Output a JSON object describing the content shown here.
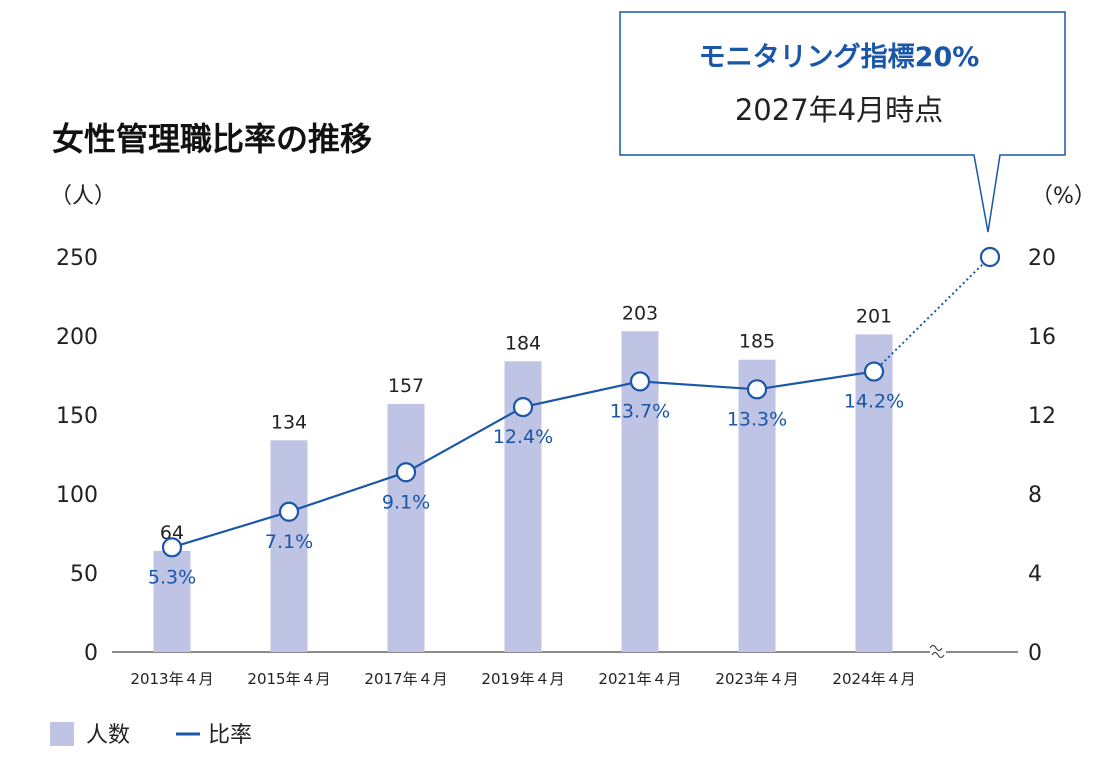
{
  "chart_data": {
    "type": "bar",
    "title": "女性管理職比率の推移",
    "left_axis": {
      "unit": "（人）",
      "ylim": [
        0,
        250
      ],
      "ticks": [
        "0",
        "50",
        "100",
        "150",
        "200",
        "250"
      ]
    },
    "right_axis": {
      "unit": "（%）",
      "ylim": [
        0,
        20
      ],
      "ticks": [
        "0",
        "4",
        "8",
        "12",
        "16",
        "20"
      ]
    },
    "categories": [
      "2013年４月",
      "2015年４月",
      "2017年４月",
      "2019年４月",
      "2021年４月",
      "2023年４月",
      "2024年４月"
    ],
    "series": [
      {
        "name": "人数",
        "type": "bar",
        "axis": "left",
        "values": [
          64,
          134,
          157,
          184,
          203,
          185,
          201
        ],
        "labels": [
          "64",
          "134",
          "157",
          "184",
          "203",
          "185",
          "201"
        ]
      },
      {
        "name": "比率",
        "type": "line",
        "axis": "right",
        "values": [
          5.3,
          7.1,
          9.1,
          12.4,
          13.7,
          13.3,
          14.2
        ],
        "labels": [
          "5.3%",
          "7.1%",
          "9.1%",
          "12.4%",
          "13.7%",
          "13.3%",
          "14.2%"
        ]
      }
    ],
    "target": {
      "value": 20,
      "line_style": "dotted",
      "axis_break": true,
      "callout_title": "モニタリング指標20%",
      "callout_sub": "2027年4月時点"
    },
    "legend": {
      "placement": "bottom-left",
      "items": [
        "人数",
        "比率"
      ]
    },
    "grid": false
  },
  "colors": {
    "bar": "#bfc3e4",
    "line": "#1a57a8",
    "text": "#222222",
    "callout_border": "#1a57a8",
    "axis": "#444444"
  }
}
